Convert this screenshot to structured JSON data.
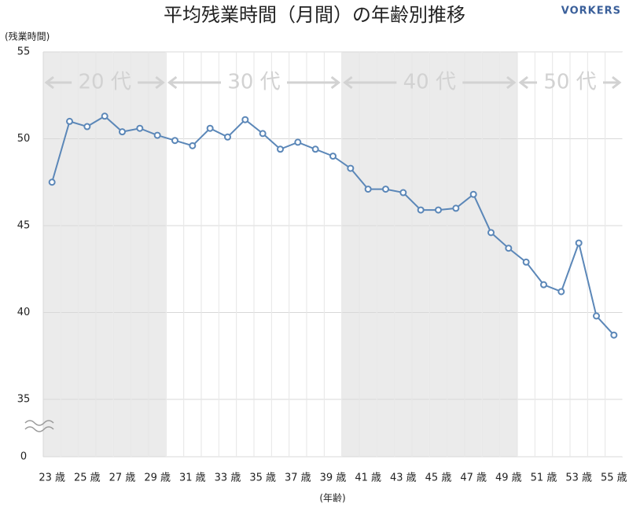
{
  "chart_data": {
    "type": "line",
    "title": "平均残業時間（月間）の年齢別推移",
    "brand": "VORKERS",
    "y_label": "(残業時間)",
    "x_label": "(年齢)",
    "categories": [
      "23 歳",
      null,
      "25 歳",
      null,
      "27 歳",
      null,
      "29 歳",
      null,
      "31 歳",
      null,
      "33 歳",
      null,
      "35 歳",
      null,
      "37 歳",
      null,
      "39 歳",
      null,
      "41 歳",
      null,
      "43 歳",
      null,
      "45 歳",
      null,
      "47 歳",
      null,
      "49 歳",
      null,
      "51 歳",
      null,
      "53 歳",
      null,
      "55 歳"
    ],
    "series": [
      {
        "name": "平均残業時間",
        "color": "#5b87b8",
        "values": [
          47.5,
          51.0,
          50.7,
          51.3,
          50.4,
          50.6,
          50.2,
          49.9,
          49.6,
          50.6,
          50.1,
          51.1,
          50.3,
          49.4,
          49.8,
          49.4,
          49.0,
          48.3,
          47.1,
          47.1,
          46.9,
          45.9,
          45.9,
          46.0,
          46.8,
          44.6,
          43.7,
          42.9,
          41.6,
          41.2,
          44.0,
          39.8,
          38.7
        ]
      }
    ],
    "ylim": [
      0,
      55
    ],
    "y_break": [
      0,
      35
    ],
    "yticks": [
      0,
      35,
      40,
      45,
      50,
      55
    ],
    "grid": true,
    "age_groups": [
      {
        "label": "20 代",
        "span": 7,
        "shaded": true
      },
      {
        "label": "30 代",
        "span": 10,
        "shaded": false
      },
      {
        "label": "40 代",
        "span": 10,
        "shaded": true
      },
      {
        "label": "50 代",
        "span": 6,
        "shaded": false
      }
    ]
  }
}
